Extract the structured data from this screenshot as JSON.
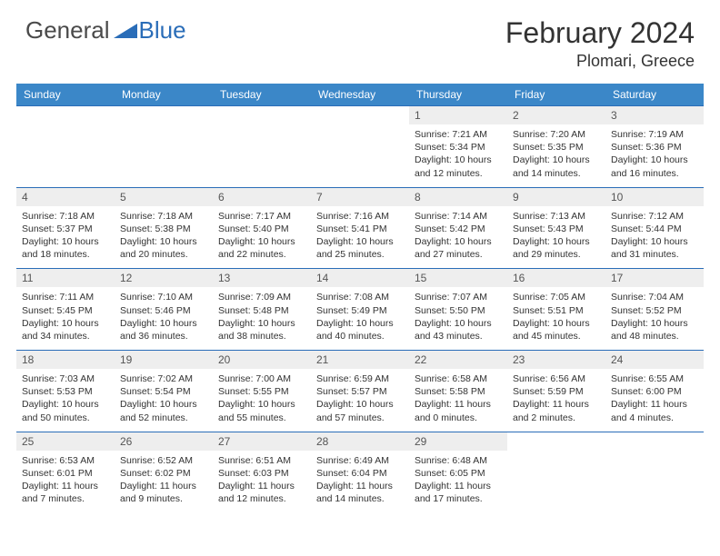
{
  "brand": {
    "part1": "General",
    "part2": "Blue",
    "color_general": "#4a4a4a",
    "color_blue": "#2a6db8"
  },
  "title": "February 2024",
  "location": "Plomari, Greece",
  "colors": {
    "header_bg": "#3b87c8",
    "header_text": "#ffffff",
    "daynum_bg": "#eeeeee",
    "row_border": "#2a6db8",
    "body_text": "#333333",
    "page_bg": "#ffffff"
  },
  "fonts": {
    "title_size_pt": 24,
    "location_size_pt": 14,
    "dayhead_size_pt": 9,
    "daybody_size_pt": 8
  },
  "day_names": [
    "Sunday",
    "Monday",
    "Tuesday",
    "Wednesday",
    "Thursday",
    "Friday",
    "Saturday"
  ],
  "weeks": [
    [
      null,
      null,
      null,
      null,
      {
        "n": "1",
        "sunrise": "7:21 AM",
        "sunset": "5:34 PM",
        "daylight": "10 hours and 12 minutes."
      },
      {
        "n": "2",
        "sunrise": "7:20 AM",
        "sunset": "5:35 PM",
        "daylight": "10 hours and 14 minutes."
      },
      {
        "n": "3",
        "sunrise": "7:19 AM",
        "sunset": "5:36 PM",
        "daylight": "10 hours and 16 minutes."
      }
    ],
    [
      {
        "n": "4",
        "sunrise": "7:18 AM",
        "sunset": "5:37 PM",
        "daylight": "10 hours and 18 minutes."
      },
      {
        "n": "5",
        "sunrise": "7:18 AM",
        "sunset": "5:38 PM",
        "daylight": "10 hours and 20 minutes."
      },
      {
        "n": "6",
        "sunrise": "7:17 AM",
        "sunset": "5:40 PM",
        "daylight": "10 hours and 22 minutes."
      },
      {
        "n": "7",
        "sunrise": "7:16 AM",
        "sunset": "5:41 PM",
        "daylight": "10 hours and 25 minutes."
      },
      {
        "n": "8",
        "sunrise": "7:14 AM",
        "sunset": "5:42 PM",
        "daylight": "10 hours and 27 minutes."
      },
      {
        "n": "9",
        "sunrise": "7:13 AM",
        "sunset": "5:43 PM",
        "daylight": "10 hours and 29 minutes."
      },
      {
        "n": "10",
        "sunrise": "7:12 AM",
        "sunset": "5:44 PM",
        "daylight": "10 hours and 31 minutes."
      }
    ],
    [
      {
        "n": "11",
        "sunrise": "7:11 AM",
        "sunset": "5:45 PM",
        "daylight": "10 hours and 34 minutes."
      },
      {
        "n": "12",
        "sunrise": "7:10 AM",
        "sunset": "5:46 PM",
        "daylight": "10 hours and 36 minutes."
      },
      {
        "n": "13",
        "sunrise": "7:09 AM",
        "sunset": "5:48 PM",
        "daylight": "10 hours and 38 minutes."
      },
      {
        "n": "14",
        "sunrise": "7:08 AM",
        "sunset": "5:49 PM",
        "daylight": "10 hours and 40 minutes."
      },
      {
        "n": "15",
        "sunrise": "7:07 AM",
        "sunset": "5:50 PM",
        "daylight": "10 hours and 43 minutes."
      },
      {
        "n": "16",
        "sunrise": "7:05 AM",
        "sunset": "5:51 PM",
        "daylight": "10 hours and 45 minutes."
      },
      {
        "n": "17",
        "sunrise": "7:04 AM",
        "sunset": "5:52 PM",
        "daylight": "10 hours and 48 minutes."
      }
    ],
    [
      {
        "n": "18",
        "sunrise": "7:03 AM",
        "sunset": "5:53 PM",
        "daylight": "10 hours and 50 minutes."
      },
      {
        "n": "19",
        "sunrise": "7:02 AM",
        "sunset": "5:54 PM",
        "daylight": "10 hours and 52 minutes."
      },
      {
        "n": "20",
        "sunrise": "7:00 AM",
        "sunset": "5:55 PM",
        "daylight": "10 hours and 55 minutes."
      },
      {
        "n": "21",
        "sunrise": "6:59 AM",
        "sunset": "5:57 PM",
        "daylight": "10 hours and 57 minutes."
      },
      {
        "n": "22",
        "sunrise": "6:58 AM",
        "sunset": "5:58 PM",
        "daylight": "11 hours and 0 minutes."
      },
      {
        "n": "23",
        "sunrise": "6:56 AM",
        "sunset": "5:59 PM",
        "daylight": "11 hours and 2 minutes."
      },
      {
        "n": "24",
        "sunrise": "6:55 AM",
        "sunset": "6:00 PM",
        "daylight": "11 hours and 4 minutes."
      }
    ],
    [
      {
        "n": "25",
        "sunrise": "6:53 AM",
        "sunset": "6:01 PM",
        "daylight": "11 hours and 7 minutes."
      },
      {
        "n": "26",
        "sunrise": "6:52 AM",
        "sunset": "6:02 PM",
        "daylight": "11 hours and 9 minutes."
      },
      {
        "n": "27",
        "sunrise": "6:51 AM",
        "sunset": "6:03 PM",
        "daylight": "11 hours and 12 minutes."
      },
      {
        "n": "28",
        "sunrise": "6:49 AM",
        "sunset": "6:04 PM",
        "daylight": "11 hours and 14 minutes."
      },
      {
        "n": "29",
        "sunrise": "6:48 AM",
        "sunset": "6:05 PM",
        "daylight": "11 hours and 17 minutes."
      },
      null,
      null
    ]
  ],
  "labels": {
    "sunrise": "Sunrise:",
    "sunset": "Sunset:",
    "daylight": "Daylight:"
  }
}
